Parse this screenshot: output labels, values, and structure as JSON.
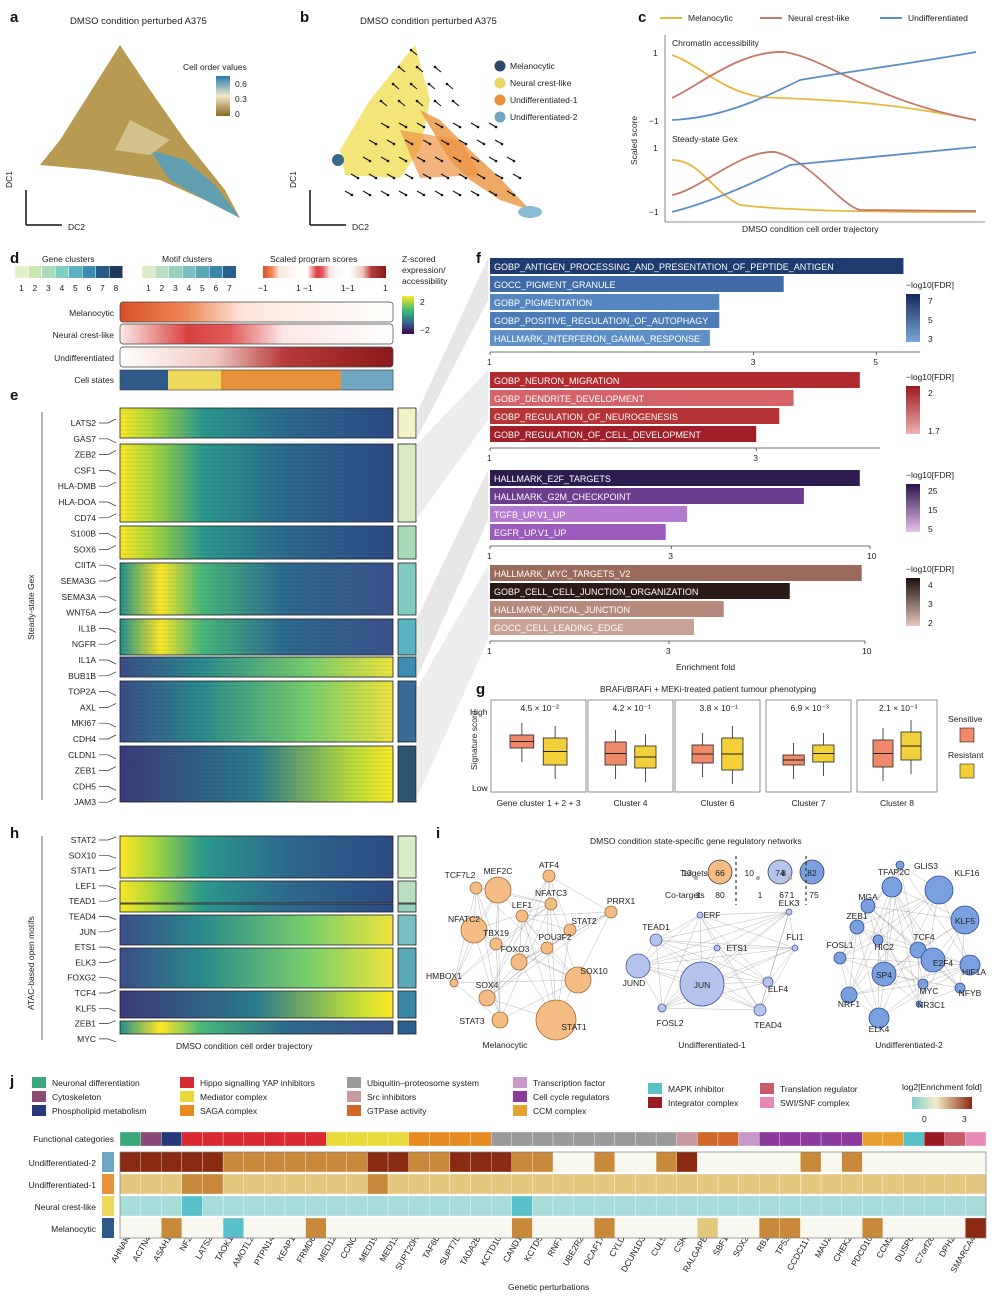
{
  "panel_letters": [
    "a",
    "b",
    "c",
    "d",
    "e",
    "f",
    "g",
    "h",
    "i",
    "j"
  ],
  "panel_a": {
    "title": "DMSO condition perturbed A375",
    "colorbar_title": "Cell order values",
    "colorbar_ticks": [
      "0.6",
      "0.3",
      "0"
    ],
    "axis_y": "DC1",
    "axis_x": "DC2"
  },
  "panel_b": {
    "title": "DMSO condition perturbed A375",
    "axis_y": "DC1",
    "axis_x": "DC2",
    "legend": [
      {
        "label": "Melanocytic",
        "color": "#2e4a6b"
      },
      {
        "label": "Neural crest-like",
        "color": "#e8d663"
      },
      {
        "label": "Undifferentiated-1",
        "color": "#e8913a"
      },
      {
        "label": "Undifferentiated-2",
        "color": "#6fa6c2"
      }
    ]
  },
  "panel_c": {
    "ylabel": "Scaled score",
    "xlabel": "DMSO condition cell order trajectory",
    "subplot1": "Chromatin accessibility",
    "subplot2": "Steady-state Gex",
    "legend": [
      {
        "label": "Melanocytic",
        "color": "#e8b83a"
      },
      {
        "label": "Neural crest-like",
        "color": "#c4786a"
      },
      {
        "label": "Undifferentiated",
        "color": "#5b8fc4"
      }
    ]
  },
  "panel_d": {
    "gene_clusters_title": "Gene clusters",
    "motif_clusters_title": "Motif clusters",
    "scaled_title": "Scaled program scores",
    "zscore_title": [
      "Z-scored",
      "expression/",
      "accessibility"
    ],
    "zscore_ticks": [
      "2",
      "−2"
    ],
    "gene_cluster_nums": [
      "1",
      "2",
      "3",
      "4",
      "5",
      "6",
      "7",
      "8"
    ],
    "motif_cluster_nums": [
      "1",
      "2",
      "3",
      "4",
      "5",
      "6",
      "7"
    ],
    "scaled_ticks": [
      "−1",
      "1",
      "−1",
      "1",
      "−1",
      "1"
    ],
    "rows": [
      "Melanocytic",
      "Neural crest-like",
      "Undifferentiated",
      "Cell states"
    ]
  },
  "panel_e": {
    "ylabel": "Steady-state Gex",
    "genes": [
      "LATS2",
      "GAS7",
      "ZEB2",
      "CSF1",
      "HLA-DMB",
      "HLA-DOA",
      "CD74",
      "S100B",
      "SOX6",
      "CIITA",
      "SEMA3G",
      "SEMA3A",
      "WNT5A",
      "IL1B",
      "NGFR",
      "IL1A",
      "BUB1B",
      "TOP2A",
      "AXL",
      "MKI67",
      "CDH4",
      "CLDN1",
      "ZEB1",
      "CDH5",
      "JAM3"
    ]
  },
  "panel_h": {
    "ylabel": "ATAC-based open motifs",
    "xlabel": "DMSO condition cell order trajectory",
    "motifs": [
      "STAT2",
      "SOX10",
      "STAT1",
      "LEF1",
      "TEAD1",
      "TEAD4",
      "JUN",
      "ETS1",
      "ELK3",
      "FOXG2",
      "TCF4",
      "KLF5",
      "ZEB1",
      "MYC"
    ]
  },
  "chart_data": [
    {
      "type": "bar",
      "panel": "f1",
      "legend_title": "−log10[FDR]",
      "legend_ticks": [
        "7",
        "5",
        "3"
      ],
      "xticks": [
        "1",
        "3",
        "5"
      ],
      "categories": [
        "GOBP_ANTIGEN_PROCESSING_AND_PRESENTATION_OF_PEPTIDE_ANTIGEN",
        "GOCC_PIGMENT_GRANULE",
        "GOBP_PIGMENTATION",
        "GOBP_POSITIVE_REGULATION_OF_AUTOPHAGY",
        "HALLMARK_INTERFERON_GAMMA_RESPONSE"
      ],
      "values": [
        5.6,
        3.4,
        2.6,
        2.6,
        2.5
      ],
      "colors": [
        "#1f3a6e",
        "#3f6aa6",
        "#5586c0",
        "#4c7cb8",
        "#5e90c6"
      ]
    },
    {
      "type": "bar",
      "panel": "f2",
      "legend_title": "−log10[FDR]",
      "legend_ticks": [
        "2",
        "1.7"
      ],
      "xticks": [
        "1",
        "3"
      ],
      "categories": [
        "GOBP_NEURON_MIGRATION",
        "GOBP_DENDRITE_DEVELOPMENT",
        "GOBP_REGULATION_OF_NEUROGENESIS",
        "GOBP_REGULATION_OF_CELL_DEVELOPMENT"
      ],
      "values": [
        4.6,
        3.5,
        3.3,
        3.0
      ],
      "colors": [
        "#b02a2e",
        "#d46469",
        "#b63438",
        "#a01f28"
      ]
    },
    {
      "type": "bar",
      "panel": "f3",
      "legend_title": "−log10[FDR]",
      "legend_ticks": [
        "25",
        "15",
        "5"
      ],
      "xticks": [
        "1",
        "3",
        "10"
      ],
      "categories": [
        "HALLMARK_E2F_TARGETS",
        "HALLMARK_G2M_CHECKPOINT",
        "TGFB_UP.V1_UP",
        "EGFR_UP.V1_UP"
      ],
      "values": [
        9.4,
        6.7,
        3.3,
        2.9
      ],
      "colors": [
        "#2d1d4e",
        "#6a3d8f",
        "#b57bd0",
        "#9a5bbd"
      ]
    },
    {
      "type": "bar",
      "panel": "f4",
      "legend_title": "−log10[FDR]",
      "legend_ticks": [
        "4",
        "3",
        "2"
      ],
      "xticks": [
        "1",
        "3",
        "10"
      ],
      "xlabel": "Enrichment fold",
      "categories": [
        "HALLMARK_MYC_TARGETS_V2",
        "GOBP_CELL_CELL_JUNCTION_ORGANIZATION",
        "HALLMARK_APICAL_JUNCTION",
        "GOCC_CELL_LEADING_EDGE"
      ],
      "values": [
        9.8,
        6.3,
        4.2,
        3.5
      ],
      "colors": [
        "#9a6a5c",
        "#2a1a16",
        "#b58a7c",
        "#c8a294"
      ]
    },
    {
      "type": "box",
      "panel": "g",
      "title": "BRAFi/BRAFi + MEKi-treated patient tumour phenotyping",
      "ylabel": "Signature score",
      "yticks": [
        "High",
        "Low"
      ],
      "groups": [
        "Gene cluster 1 + 2 + 3",
        "Cluster 4",
        "Cluster 6",
        "Cluster 7",
        "Cluster 8"
      ],
      "pvalues": [
        "4.5 × 10⁻²",
        "4.2 × 10⁻¹",
        "3.8 × 10⁻¹",
        "6.9 × 10⁻³",
        "2.1 × 10⁻³"
      ],
      "series": [
        {
          "name": "Sensitive",
          "color": "#f0896a"
        },
        {
          "name": "Resistant",
          "color": "#f2d03a"
        }
      ]
    }
  ],
  "panel_i": {
    "title": "DMSO condition state-specific gene regulatory networks",
    "mel": {
      "label": "Melanocytic",
      "nodes": [
        "MEF2C",
        "ATF4",
        "TCF7L2",
        "PRRX1",
        "NFATC3",
        "LEF1",
        "NFATC2",
        "STAT2",
        "TBX19",
        "POU3F2",
        "HMBOX1",
        "FOXO3",
        "SOX10",
        "SOX4",
        "STAT3",
        "STAT1"
      ]
    },
    "und1": {
      "label": "Undifferentiated-1",
      "nodes": [
        "ERF",
        "ELK3",
        "TEAD1",
        "ETS1",
        "FLI1",
        "JUND",
        "JUN",
        "ELF4",
        "FOSL2",
        "TEAD4"
      ]
    },
    "und2": {
      "label": "Undifferentiated-2",
      "nodes": [
        "GLIS3",
        "TFAP2C",
        "KLF16",
        "MGA",
        "ZEB1",
        "KLF5",
        "HIC2",
        "TCF4",
        "FOSL1",
        "E2F4",
        "HIF1A",
        "SP4",
        "MYC",
        "NFYB",
        "NRF1",
        "NR3C1",
        "ELK4"
      ]
    },
    "targets_label": "Targets",
    "cotargets_label": "Co-targets",
    "targets": [
      "13",
      "66",
      "10",
      "74",
      "8",
      "82"
    ],
    "cotargets": [
      "1",
      "80",
      "1",
      "67",
      "1",
      "75"
    ]
  },
  "panel_j": {
    "xlabel": "Genetic perturbations",
    "functional_label": "Functional categories",
    "enrich_title": "log2[Enrichment fold]",
    "enrich_ticks": [
      "0",
      "3"
    ],
    "rows": [
      "Undifferentiated-2",
      "Undifferentiated-1",
      "Neural crest-like",
      "Melanocytic"
    ],
    "categories": [
      {
        "label": "Neuronal differentiation",
        "color": "#3aa87a"
      },
      {
        "label": "Cytoskeleton",
        "color": "#8a4a78"
      },
      {
        "label": "Phospholipid metabolism",
        "color": "#26387a"
      },
      {
        "label": "Hippo signalling YAP inhibitors",
        "color": "#d92a32"
      },
      {
        "label": "Mediator complex",
        "color": "#e8d83a"
      },
      {
        "label": "SAGA complex",
        "color": "#e88a22"
      },
      {
        "label": "Ubiquitin–proteosome system",
        "color": "#9a9a9a"
      },
      {
        "label": "Src inhibitors",
        "color": "#c89aa0"
      },
      {
        "label": "GTPase activity",
        "color": "#d0682a"
      },
      {
        "label": "Transcription factor",
        "color": "#c898c8"
      },
      {
        "label": "Cell cycle regulators",
        "color": "#8a3a9a"
      },
      {
        "label": "CCM complex",
        "color": "#e8a030"
      },
      {
        "label": "MAPK inhibitor",
        "color": "#58c0c8"
      },
      {
        "label": "Integrator complex",
        "color": "#9a1a22"
      },
      {
        "label": "Translation regulator",
        "color": "#c85a6a"
      },
      {
        "label": "SWI/SNF complex",
        "color": "#e88ab8"
      }
    ],
    "genes": [
      "AHNAK",
      "ACTN4",
      "ASAH1",
      "NF2",
      "LATS2",
      "TAOK1",
      "AMOTL2",
      "PTPN14",
      "KEAP1",
      "FRMD6",
      "MED12",
      "CCNC",
      "MED19",
      "MED13",
      "SUPT20H",
      "TAF6L",
      "SUPT7L",
      "TADA2B",
      "KCTD10",
      "CAND1",
      "KCTD5",
      "RNF7",
      "UBE2R2",
      "DCAF17",
      "CYLD",
      "DCUN1D3",
      "CUL5",
      "CSK",
      "RALGAPB",
      "SBF1",
      "SOX2",
      "RB1",
      "TP53",
      "CCDC117",
      "MAU2",
      "CHEK2",
      "PDCD10",
      "CCM2",
      "DUSP6",
      "C7orf26",
      "DPH2",
      "SMARCA4"
    ],
    "gene_cat": [
      0,
      1,
      2,
      3,
      3,
      3,
      3,
      3,
      3,
      3,
      4,
      4,
      4,
      4,
      5,
      5,
      5,
      5,
      6,
      6,
      6,
      6,
      6,
      6,
      6,
      6,
      6,
      7,
      8,
      8,
      9,
      10,
      10,
      10,
      10,
      10,
      11,
      11,
      12,
      13,
      14,
      15
    ],
    "grid": [
      [
        3,
        3,
        3,
        3,
        3,
        2,
        2,
        2,
        2,
        2,
        2,
        2,
        3,
        3,
        2,
        2,
        3,
        3,
        3,
        2,
        2,
        0,
        0,
        2,
        0,
        0,
        2,
        3,
        0,
        0,
        0,
        0,
        0,
        2,
        0,
        2,
        0,
        0,
        0,
        0,
        0,
        0
      ],
      [
        1,
        1,
        1,
        2,
        2,
        1,
        1,
        1,
        1,
        1,
        1,
        1,
        2,
        1,
        1,
        1,
        1,
        1,
        1,
        1,
        1,
        1,
        1,
        1,
        1,
        1,
        1,
        1,
        1,
        1,
        1,
        1,
        1,
        1,
        1,
        1,
        1,
        1,
        1,
        1,
        1,
        1
      ],
      [
        -1,
        -1,
        -1,
        -2,
        -1,
        -1,
        -1,
        -1,
        -1,
        -1,
        -1,
        -1,
        -1,
        -1,
        -1,
        -1,
        -1,
        -1,
        -1,
        -2,
        -1,
        -1,
        -1,
        -1,
        -1,
        -1,
        -1,
        -1,
        -1,
        -1,
        -1,
        -1,
        -1,
        -1,
        -1,
        -1,
        -1,
        -1,
        -1,
        -1,
        -1,
        -1
      ],
      [
        0,
        0,
        2,
        0,
        0,
        -2,
        0,
        0,
        0,
        2,
        0,
        0,
        0,
        0,
        0,
        0,
        0,
        0,
        0,
        2,
        0,
        0,
        0,
        2,
        0,
        0,
        0,
        0,
        1,
        0,
        0,
        2,
        2,
        0,
        0,
        0,
        2,
        0,
        0,
        0,
        0,
        3
      ]
    ]
  }
}
